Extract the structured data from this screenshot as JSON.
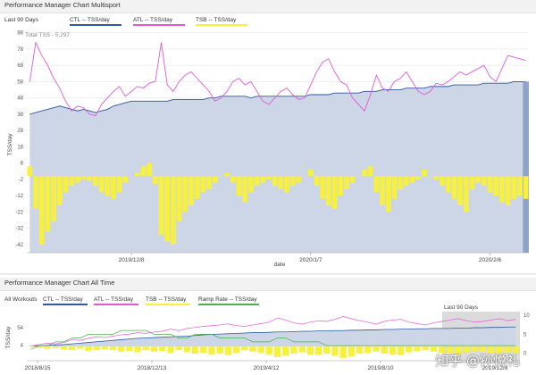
{
  "panel1": {
    "title": "Performance Manager Chart Multisport",
    "range_label": "Last 90 Days",
    "legend": {
      "ctl": "CTL -- TSS/day",
      "atl": "ATL -- TSS/day",
      "tsb": "TSB -- TSS/day"
    },
    "total_tss": "Total TSS - 5,297"
  },
  "panel2": {
    "title": "Performance Manager Chart All Time",
    "range_label": "All Workouts",
    "legend": {
      "ctl": "CTL -- TSS/day",
      "atl": "ATL -- TSS/day",
      "tsb": "TSB -- TSS/day",
      "ramp": "Ramp Rate -- TSS/day"
    },
    "window_label": "Last 90 Days"
  },
  "watermark": "知乎 @孙悦礼",
  "colors": {
    "ctl_fill": "#ccd6e6",
    "ctl_line": "#2d5aa0",
    "atl": "#e05ad8",
    "tsb": "#f7f13e",
    "ramp": "#4caf50"
  },
  "chart_data": [
    {
      "type": "area",
      "title": "Performance Manager Chart Multisport",
      "xlabel": "date",
      "ylabel": "TSS/day",
      "ylim": [
        -47,
        90
      ],
      "yticks": [
        88,
        78,
        68,
        58,
        48,
        38,
        28,
        18,
        8,
        -2,
        -12,
        -22,
        -32,
        -42
      ],
      "xtick_labels": [
        "2019/12/8",
        "2020/1/7",
        "2020/2/6"
      ],
      "xtick_index": [
        17,
        47,
        77
      ],
      "grid": true,
      "legend_position": "top-left",
      "series": [
        {
          "name": "CTL -- TSS/day",
          "kind": "area",
          "values": [
            38,
            39,
            40,
            41,
            42,
            43,
            42,
            41,
            40,
            41,
            40,
            39,
            40,
            41,
            43,
            44,
            45,
            46,
            46,
            46,
            46,
            46,
            46,
            46,
            47,
            47,
            47,
            47,
            47,
            47,
            48,
            48,
            49,
            49,
            49,
            49,
            49,
            48,
            49,
            49,
            49,
            49,
            49,
            49,
            49,
            49,
            49,
            50,
            50,
            50,
            50,
            51,
            51,
            51,
            51,
            51,
            52,
            52,
            52,
            53,
            53,
            53,
            53,
            54,
            54,
            54,
            54,
            55,
            55,
            55,
            55,
            56,
            56,
            56,
            56,
            56,
            57,
            57,
            57,
            57,
            57,
            58,
            58,
            58
          ]
        },
        {
          "name": "ATL -- TSS/day",
          "kind": "line",
          "values": [
            58,
            82,
            74,
            68,
            60,
            54,
            46,
            40,
            43,
            42,
            38,
            37,
            44,
            48,
            52,
            55,
            49,
            52,
            55,
            54,
            57,
            58,
            82,
            56,
            52,
            58,
            62,
            64,
            60,
            56,
            52,
            46,
            48,
            52,
            58,
            60,
            56,
            58,
            52,
            46,
            44,
            48,
            52,
            54,
            50,
            47,
            48,
            56,
            64,
            70,
            72,
            64,
            58,
            56,
            48,
            44,
            40,
            50,
            62,
            54,
            52,
            58,
            60,
            64,
            58,
            52,
            50,
            52,
            57,
            56,
            58,
            61,
            64,
            62,
            64,
            66,
            68,
            61,
            58,
            66,
            74,
            73,
            72,
            71
          ]
        },
        {
          "name": "TSB -- TSS/day",
          "kind": "bar",
          "values": [
            6,
            -20,
            -42,
            -34,
            -28,
            -18,
            -10,
            -6,
            -4,
            -2,
            -3,
            -6,
            -10,
            -12,
            -14,
            -10,
            -4,
            0,
            2,
            6,
            8,
            -5,
            -36,
            -40,
            -42,
            -28,
            -22,
            -18,
            -14,
            -10,
            -8,
            -4,
            0,
            2,
            -4,
            -12,
            -16,
            -10,
            -6,
            -4,
            -2,
            -6,
            -8,
            -10,
            -6,
            -4,
            0,
            4,
            -6,
            -14,
            -18,
            -20,
            -12,
            -8,
            -4,
            0,
            4,
            6,
            -10,
            -18,
            -22,
            -14,
            -8,
            -6,
            -4,
            -2,
            4,
            0,
            -2,
            -6,
            -10,
            -14,
            -18,
            -22,
            -8,
            -4,
            -6,
            -10,
            -12,
            -16,
            -18,
            -14,
            -12,
            -14
          ]
        }
      ]
    },
    {
      "type": "area",
      "title": "Performance Manager Chart All Time",
      "ylabel": "TSS/day",
      "ylim": [
        0,
        100
      ],
      "yticks": [
        54,
        4
      ],
      "y2ticks": [
        10,
        5,
        0
      ],
      "xtick_labels": [
        "2018/8/15",
        "2018/12/13",
        "2019/4/12",
        "2019/8/10",
        "2019/12/8"
      ],
      "highlight": "Last 90 Days",
      "series": [
        {
          "name": "CTL -- TSS/day",
          "kind": "area",
          "values": [
            2,
            3,
            4,
            5,
            6,
            8,
            10,
            12,
            14,
            16,
            18,
            20,
            22,
            24,
            25,
            26,
            27,
            28,
            29,
            30,
            32,
            34,
            35,
            36,
            37,
            38,
            39,
            40,
            40,
            41,
            42,
            42,
            43,
            44,
            44,
            45,
            45,
            46,
            46,
            47,
            47,
            48,
            48,
            49,
            49,
            50,
            50,
            51,
            51,
            52,
            52,
            52,
            53,
            53,
            54,
            54,
            55,
            55,
            56,
            56
          ]
        },
        {
          "name": "ATL -- TSS/day",
          "kind": "line",
          "values": [
            2,
            6,
            10,
            8,
            12,
            20,
            18,
            24,
            28,
            26,
            30,
            34,
            36,
            40,
            38,
            42,
            44,
            50,
            46,
            52,
            55,
            58,
            60,
            62,
            65,
            60,
            58,
            62,
            66,
            70,
            82,
            76,
            68,
            64,
            70,
            74,
            72,
            78,
            86,
            80,
            74,
            70,
            64,
            72,
            76,
            78,
            70,
            66,
            62,
            68,
            72,
            76,
            80,
            74,
            70,
            72,
            76,
            80,
            74,
            78
          ]
        },
        {
          "name": "TSB -- TSS/day",
          "kind": "bar",
          "values": [
            2,
            -4,
            -6,
            -4,
            -8,
            -10,
            -6,
            -12,
            -10,
            -8,
            -10,
            -14,
            -12,
            -16,
            -10,
            -14,
            -12,
            -18,
            -10,
            -16,
            -20,
            -18,
            -22,
            -20,
            -24,
            -18,
            -10,
            -14,
            -18,
            -22,
            -30,
            -26,
            -20,
            -16,
            -22,
            -24,
            -20,
            -26,
            -32,
            -28,
            -20,
            -18,
            -14,
            -20,
            -22,
            -24,
            -16,
            -12,
            -10,
            -14,
            -18,
            -20,
            -24,
            -16,
            -12,
            -14,
            -18,
            -20,
            -16,
            -18
          ]
        },
        {
          "name": "Ramp Rate -- TSS/day",
          "kind": "line",
          "values": [
            1,
            2,
            2,
            3,
            3,
            4,
            4,
            5,
            5,
            5,
            5,
            6,
            6,
            6,
            6,
            5,
            5,
            5,
            4,
            4,
            5,
            5,
            5,
            4,
            4,
            4,
            4,
            3,
            3,
            3,
            4,
            4,
            3,
            3,
            3,
            3,
            2,
            2,
            2,
            2,
            2,
            2,
            2,
            2,
            2,
            2,
            2,
            2,
            2,
            2,
            2,
            2,
            2,
            2,
            2,
            2,
            2,
            2,
            2,
            2
          ]
        }
      ]
    }
  ]
}
